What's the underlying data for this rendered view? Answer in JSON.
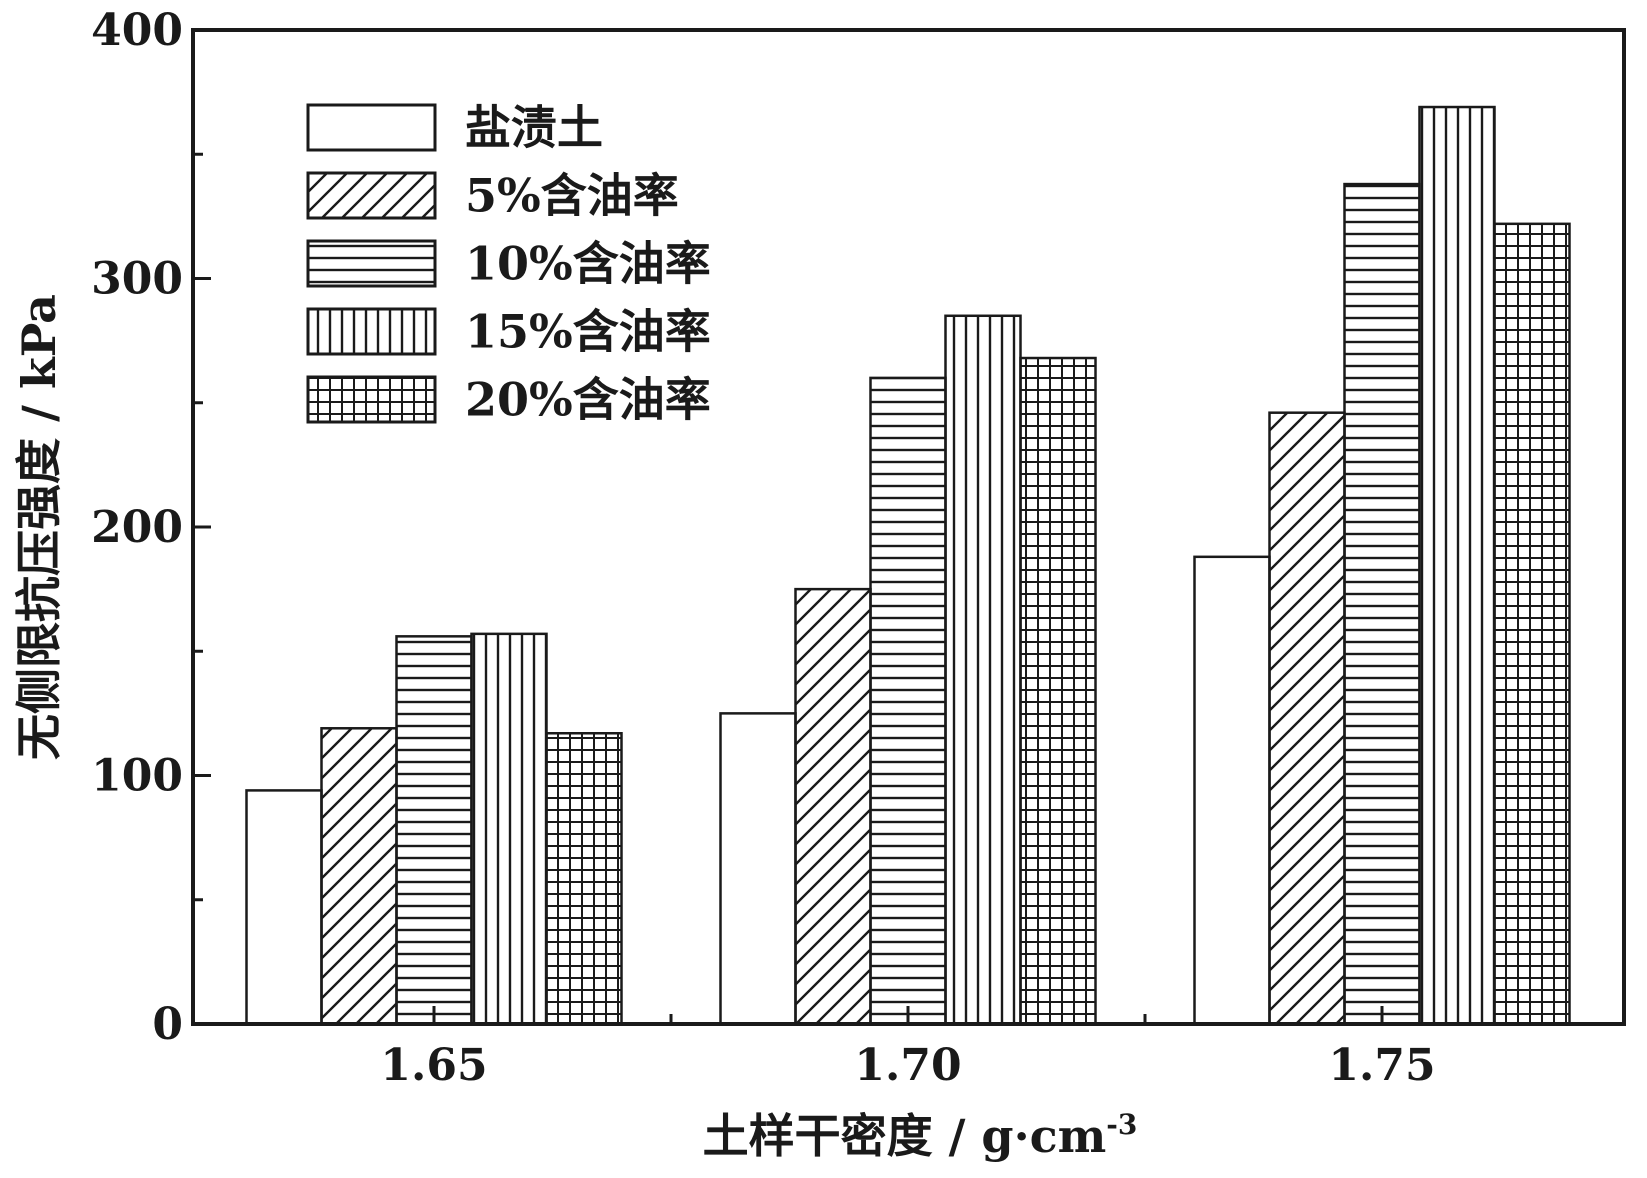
{
  "chart_data": {
    "type": "bar",
    "xlabel": "土样干密度 / g·cm",
    "xlabel_sup": "-3",
    "ylabel": "无侧限抗压强度 / kPa",
    "categories": [
      "1.65",
      "1.70",
      "1.75"
    ],
    "ylim": [
      0,
      400
    ],
    "yticks": [
      0,
      100,
      200,
      300,
      400
    ],
    "ytick_labels": [
      "0",
      "100",
      "200",
      "300",
      "400"
    ],
    "legend_position": "top-left",
    "grid": false,
    "series": [
      {
        "name": "盐渍土",
        "pattern": "none",
        "values": [
          94,
          125,
          188
        ]
      },
      {
        "name": "5%含油率",
        "pattern": "diagonal",
        "values": [
          119,
          175,
          246
        ]
      },
      {
        "name": "10%含油率",
        "pattern": "horizontal",
        "values": [
          156,
          260,
          338
        ]
      },
      {
        "name": "15%含油率",
        "pattern": "vertical",
        "values": [
          157,
          285,
          369
        ]
      },
      {
        "name": "20%含油率",
        "pattern": "grid",
        "values": [
          117,
          268,
          322
        ]
      }
    ],
    "colors": {
      "ink": "#1a1a1a",
      "background": "#ffffff"
    }
  }
}
